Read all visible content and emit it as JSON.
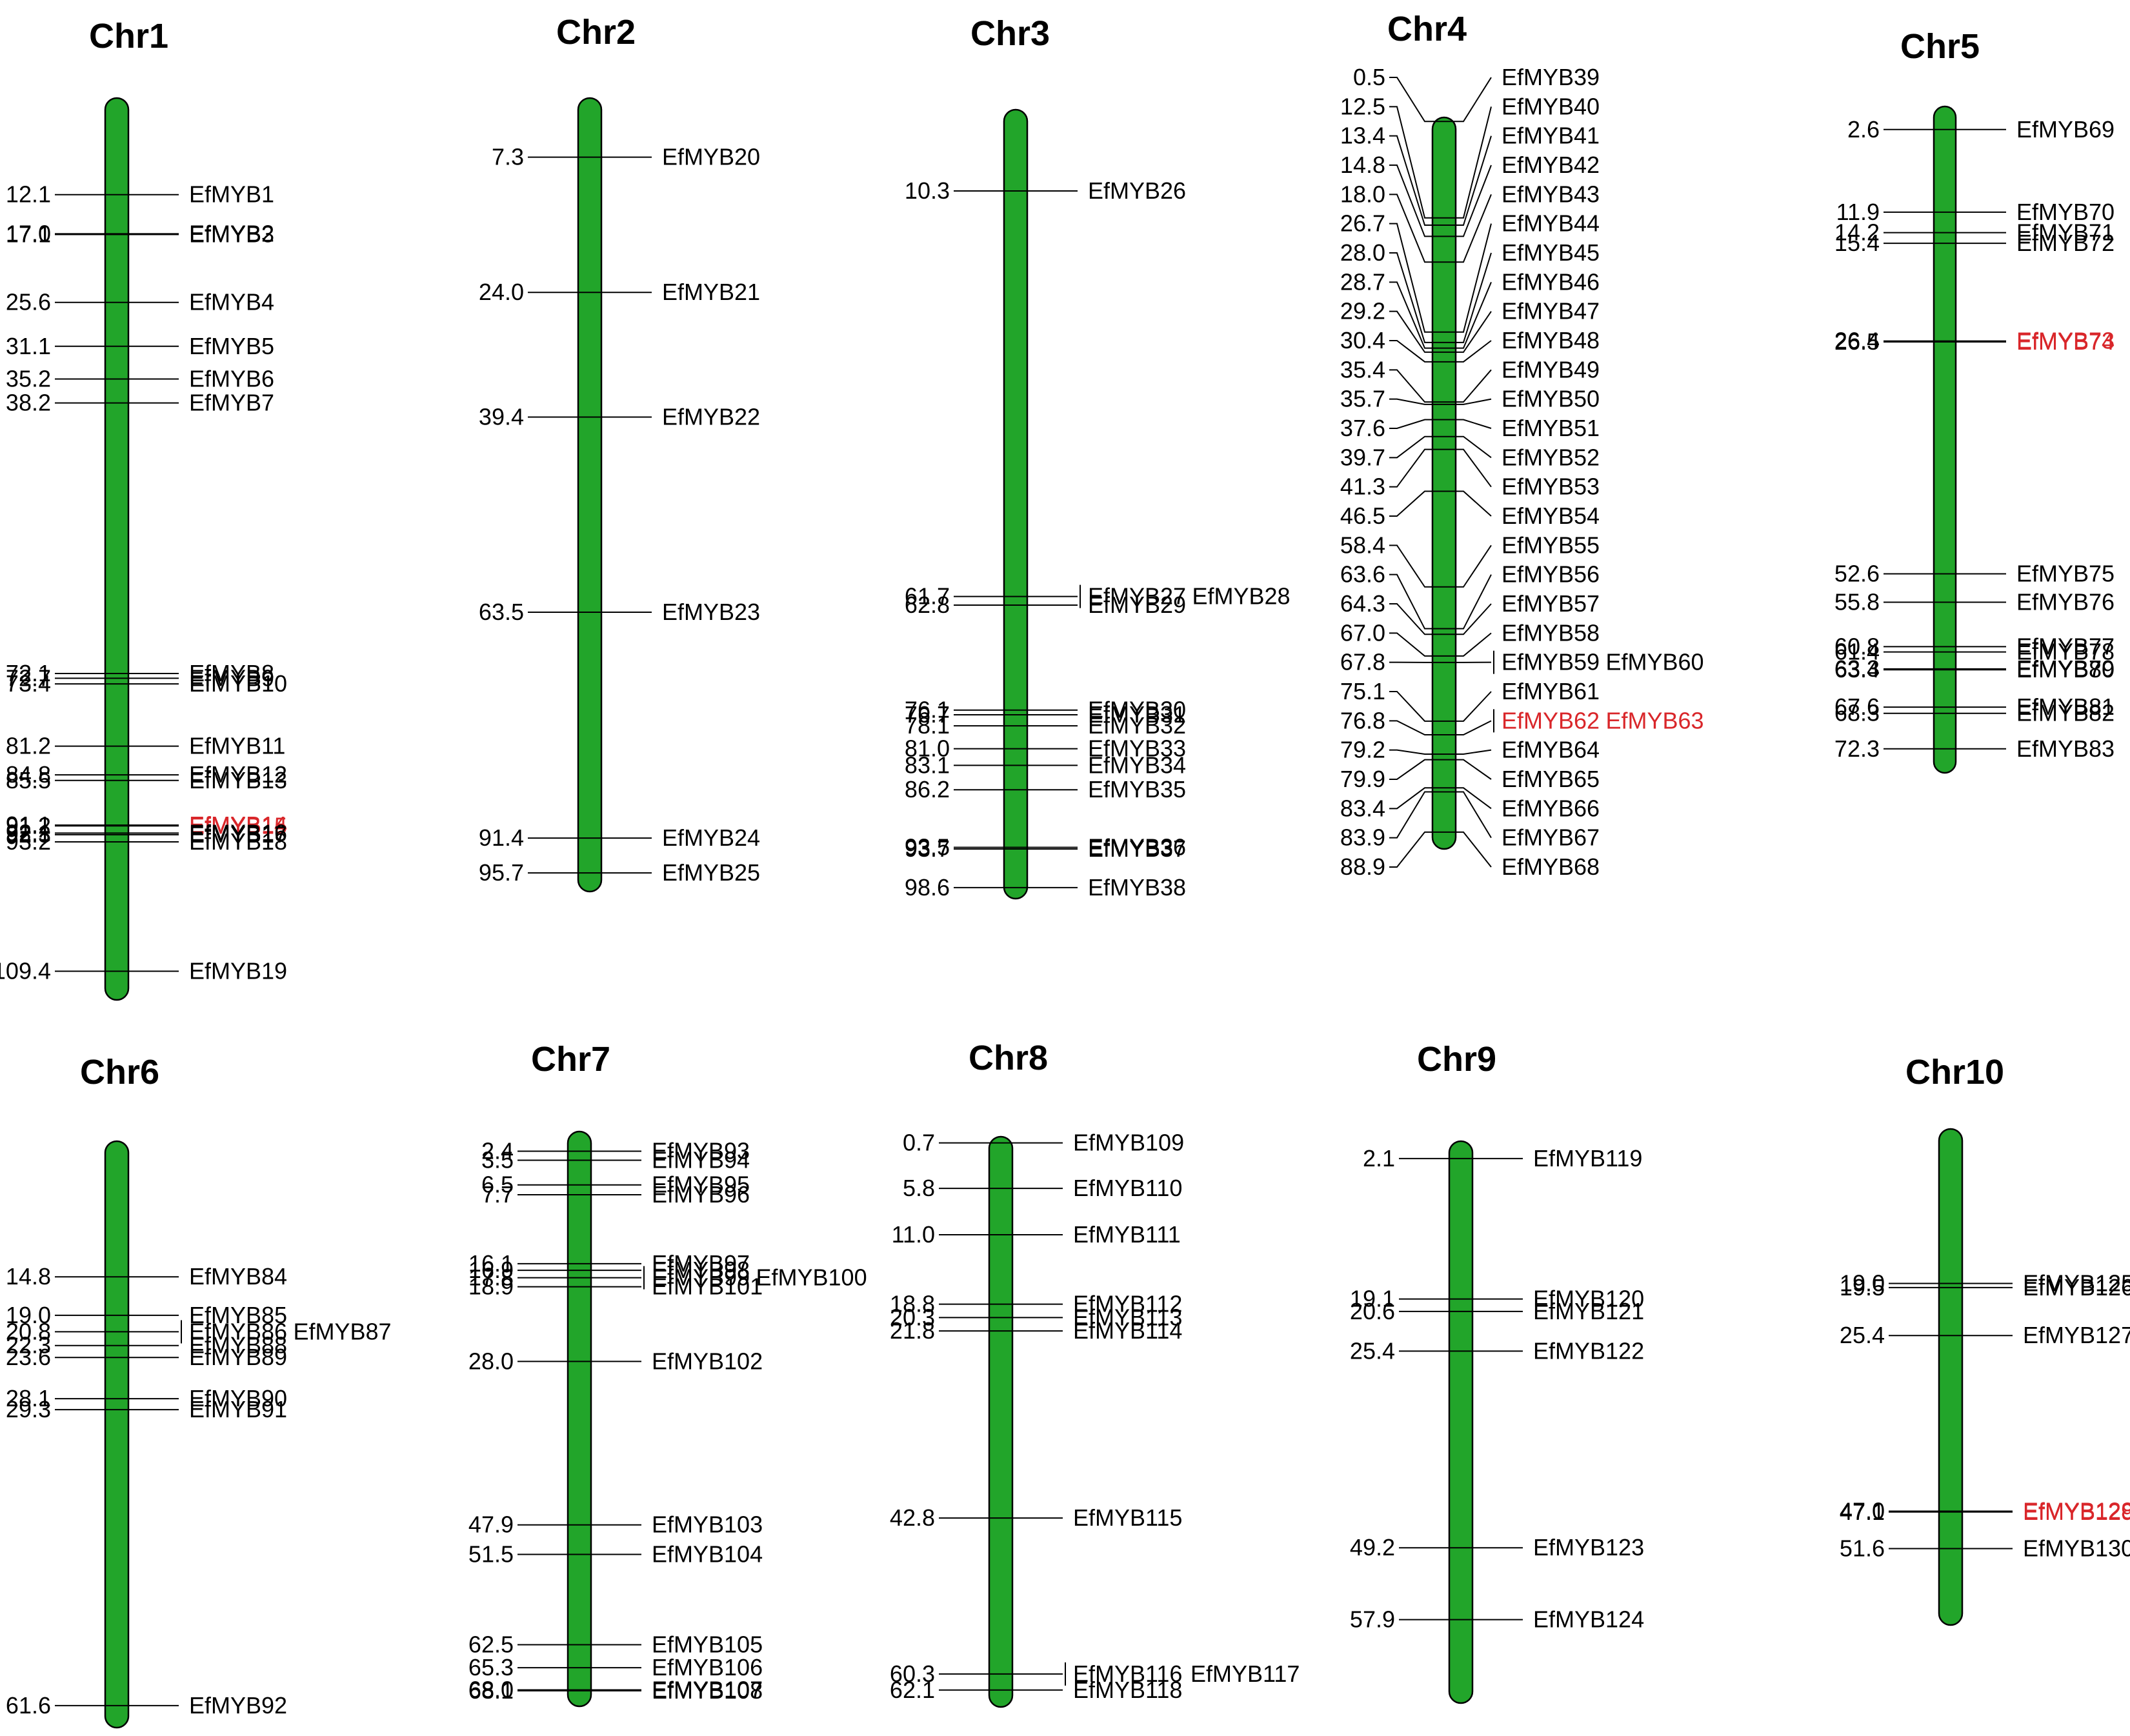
{
  "colors": {
    "chromosome_fill": "#22a52a",
    "highlight_gene": "#d9262a",
    "text": "#000000"
  },
  "chart_data": {
    "type": "chromosome-map",
    "units": "Mb",
    "chromosomes": [
      {
        "name": "Chr1",
        "length": 113,
        "genes": [
          {
            "pos": 12.1,
            "label": "12.1",
            "genes": [
              "EfMYB1"
            ]
          },
          {
            "pos": 17.0,
            "label": "17.0",
            "genes": [
              "EfMYB2"
            ]
          },
          {
            "pos": 17.1,
            "label": "17.1",
            "genes": [
              "EfMYB3"
            ]
          },
          {
            "pos": 25.6,
            "label": "25.6",
            "genes": [
              "EfMYB4"
            ]
          },
          {
            "pos": 31.1,
            "label": "31.1",
            "genes": [
              "EfMYB5"
            ]
          },
          {
            "pos": 35.2,
            "label": "35.2",
            "genes": [
              "EfMYB6"
            ]
          },
          {
            "pos": 38.2,
            "label": "38.2",
            "genes": [
              "EfMYB7"
            ]
          },
          {
            "pos": 72.1,
            "label": "72.1",
            "genes": [
              "EfMYB8"
            ]
          },
          {
            "pos": 72.7,
            "label": "72.7",
            "genes": [
              "EfMYB9"
            ]
          },
          {
            "pos": 73.4,
            "label": "73.4",
            "genes": [
              "EfMYB10"
            ]
          },
          {
            "pos": 81.2,
            "label": "81.2",
            "genes": [
              "EfMYB11"
            ]
          },
          {
            "pos": 84.8,
            "label": "84.8",
            "genes": [
              "EfMYB12"
            ]
          },
          {
            "pos": 85.5,
            "label": "85.5",
            "genes": [
              "EfMYB13"
            ]
          },
          {
            "pos": 91.1,
            "label": "91.1",
            "genes": [
              "EfMYB14"
            ],
            "highlight": true
          },
          {
            "pos": 91.2,
            "label": "91.2",
            "genes": [
              "EfMYB15"
            ],
            "highlight": true
          },
          {
            "pos": 92.1,
            "label": "92.1",
            "genes": [
              "EfMYB16"
            ]
          },
          {
            "pos": 92.3,
            "label": "92.3",
            "genes": [
              "EfMYB17"
            ]
          },
          {
            "pos": 93.2,
            "label": "93.2",
            "genes": [
              "EfMYB18"
            ]
          },
          {
            "pos": 109.4,
            "label": "109.4",
            "genes": [
              "EfMYB19"
            ]
          }
        ]
      },
      {
        "name": "Chr2",
        "length": 98,
        "genes": [
          {
            "pos": 7.3,
            "label": "7.3",
            "genes": [
              "EfMYB20"
            ]
          },
          {
            "pos": 24.0,
            "label": "24.0",
            "genes": [
              "EfMYB21"
            ]
          },
          {
            "pos": 39.4,
            "label": "39.4",
            "genes": [
              "EfMYB22"
            ]
          },
          {
            "pos": 63.5,
            "label": "63.5",
            "genes": [
              "EfMYB23"
            ]
          },
          {
            "pos": 91.4,
            "label": "91.4",
            "genes": [
              "EfMYB24"
            ]
          },
          {
            "pos": 95.7,
            "label": "95.7",
            "genes": [
              "EfMYB25"
            ]
          }
        ]
      },
      {
        "name": "Chr3",
        "length": 100,
        "genes": [
          {
            "pos": 10.3,
            "label": "10.3",
            "genes": [
              "EfMYB26"
            ]
          },
          {
            "pos": 61.7,
            "label": "61.7",
            "genes": [
              "EfMYB27",
              "EfMYB28"
            ]
          },
          {
            "pos": 62.8,
            "label": "62.8",
            "genes": [
              "EfMYB29"
            ]
          },
          {
            "pos": 76.1,
            "label": "76.1",
            "genes": [
              "EfMYB30"
            ]
          },
          {
            "pos": 76.7,
            "label": "76.7",
            "genes": [
              "EfMYB31"
            ]
          },
          {
            "pos": 78.1,
            "label": "78.1",
            "genes": [
              "EfMYB32"
            ]
          },
          {
            "pos": 81.0,
            "label": "81.0",
            "genes": [
              "EfMYB33"
            ]
          },
          {
            "pos": 83.1,
            "label": "83.1",
            "genes": [
              "EfMYB34"
            ]
          },
          {
            "pos": 86.2,
            "label": "86.2",
            "genes": [
              "EfMYB35"
            ]
          },
          {
            "pos": 93.5,
            "label": "93.5",
            "genes": [
              "EfMYB36"
            ]
          },
          {
            "pos": 93.7,
            "label": "93.7",
            "genes": [
              "EfMYB37"
            ]
          },
          {
            "pos": 98.6,
            "label": "98.6",
            "genes": [
              "EfMYB38"
            ]
          }
        ]
      },
      {
        "name": "Chr4",
        "length": 91,
        "genes": [
          {
            "pos": 0.5,
            "label": "0.5",
            "genes": [
              "EfMYB39"
            ]
          },
          {
            "pos": 12.5,
            "label": "12.5",
            "genes": [
              "EfMYB40"
            ]
          },
          {
            "pos": 13.4,
            "label": "13.4",
            "genes": [
              "EfMYB41"
            ]
          },
          {
            "pos": 14.8,
            "label": "14.8",
            "genes": [
              "EfMYB42"
            ]
          },
          {
            "pos": 18.0,
            "label": "18.0",
            "genes": [
              "EfMYB43"
            ]
          },
          {
            "pos": 26.7,
            "label": "26.7",
            "genes": [
              "EfMYB44"
            ]
          },
          {
            "pos": 28.0,
            "label": "28.0",
            "genes": [
              "EfMYB45"
            ]
          },
          {
            "pos": 28.7,
            "label": "28.7",
            "genes": [
              "EfMYB46"
            ]
          },
          {
            "pos": 29.2,
            "label": "29.2",
            "genes": [
              "EfMYB47"
            ]
          },
          {
            "pos": 30.4,
            "label": "30.4",
            "genes": [
              "EfMYB48"
            ]
          },
          {
            "pos": 35.4,
            "label": "35.4",
            "genes": [
              "EfMYB49"
            ]
          },
          {
            "pos": 35.7,
            "label": "35.7",
            "genes": [
              "EfMYB50"
            ]
          },
          {
            "pos": 37.6,
            "label": "37.6",
            "genes": [
              "EfMYB51"
            ]
          },
          {
            "pos": 39.7,
            "label": "39.7",
            "genes": [
              "EfMYB52"
            ]
          },
          {
            "pos": 41.3,
            "label": "41.3",
            "genes": [
              "EfMYB53"
            ]
          },
          {
            "pos": 46.5,
            "label": "46.5",
            "genes": [
              "EfMYB54"
            ]
          },
          {
            "pos": 58.4,
            "label": "58.4",
            "genes": [
              "EfMYB55"
            ]
          },
          {
            "pos": 63.6,
            "label": "63.6",
            "genes": [
              "EfMYB56"
            ]
          },
          {
            "pos": 64.3,
            "label": "64.3",
            "genes": [
              "EfMYB57"
            ]
          },
          {
            "pos": 67.0,
            "label": "67.0",
            "genes": [
              "EfMYB58"
            ]
          },
          {
            "pos": 67.8,
            "label": "67.8",
            "genes": [
              "EfMYB59",
              "EfMYB60"
            ]
          },
          {
            "pos": 75.1,
            "label": "75.1",
            "genes": [
              "EfMYB61"
            ]
          },
          {
            "pos": 76.8,
            "label": "76.8",
            "genes": [
              "EfMYB62",
              "EfMYB63"
            ],
            "highlight": true
          },
          {
            "pos": 79.2,
            "label": "79.2",
            "genes": [
              "EfMYB64"
            ]
          },
          {
            "pos": 79.9,
            "label": "79.9",
            "genes": [
              "EfMYB65"
            ]
          },
          {
            "pos": 83.4,
            "label": "83.4",
            "genes": [
              "EfMYB66"
            ]
          },
          {
            "pos": 83.9,
            "label": "83.9",
            "genes": [
              "EfMYB67"
            ]
          },
          {
            "pos": 88.9,
            "label": "88.9",
            "genes": [
              "EfMYB68"
            ]
          }
        ]
      },
      {
        "name": "Chr5",
        "length": 75,
        "genes": [
          {
            "pos": 2.6,
            "label": "2.6",
            "genes": [
              "EfMYB69"
            ]
          },
          {
            "pos": 11.9,
            "label": "11.9",
            "genes": [
              "EfMYB70"
            ]
          },
          {
            "pos": 14.2,
            "label": "14.2",
            "genes": [
              "EfMYB71"
            ]
          },
          {
            "pos": 15.4,
            "label": "15.4",
            "genes": [
              "EfMYB72"
            ]
          },
          {
            "pos": 26.4,
            "label": "26.4",
            "genes": [
              "EfMYB73"
            ],
            "highlight": true
          },
          {
            "pos": 26.5,
            "label": "26.5",
            "genes": [
              "EfMYB74"
            ],
            "highlight": true
          },
          {
            "pos": 52.6,
            "label": "52.6",
            "genes": [
              "EfMYB75"
            ]
          },
          {
            "pos": 55.8,
            "label": "55.8",
            "genes": [
              "EfMYB76"
            ]
          },
          {
            "pos": 60.8,
            "label": "60.8",
            "genes": [
              "EfMYB77"
            ]
          },
          {
            "pos": 61.4,
            "label": "61.4",
            "genes": [
              "EfMYB78"
            ]
          },
          {
            "pos": 63.3,
            "label": "63.3",
            "genes": [
              "EfMYB79"
            ]
          },
          {
            "pos": 63.4,
            "label": "63.4",
            "genes": [
              "EfMYB80"
            ]
          },
          {
            "pos": 67.6,
            "label": "67.6",
            "genes": [
              "EfMYB81"
            ]
          },
          {
            "pos": 68.3,
            "label": "68.3",
            "genes": [
              "EfMYB82"
            ]
          },
          {
            "pos": 72.3,
            "label": "72.3",
            "genes": [
              "EfMYB83"
            ]
          }
        ]
      },
      {
        "name": "Chr6",
        "length": 64,
        "genes": [
          {
            "pos": 14.8,
            "label": "14.8",
            "genes": [
              "EfMYB84"
            ]
          },
          {
            "pos": 19.0,
            "label": "19.0",
            "genes": [
              "EfMYB85"
            ]
          },
          {
            "pos": 20.8,
            "label": "20.8",
            "genes": [
              "EfMYB86",
              "EfMYB87"
            ]
          },
          {
            "pos": 22.3,
            "label": "22.3",
            "genes": [
              "EfMYB88"
            ]
          },
          {
            "pos": 23.6,
            "label": "23.6",
            "genes": [
              "EfMYB89"
            ]
          },
          {
            "pos": 28.1,
            "label": "28.1",
            "genes": [
              "EfMYB90"
            ]
          },
          {
            "pos": 29.3,
            "label": "29.3",
            "genes": [
              "EfMYB91"
            ]
          },
          {
            "pos": 61.6,
            "label": "61.6",
            "genes": [
              "EfMYB92"
            ]
          }
        ]
      },
      {
        "name": "Chr7",
        "length": 70,
        "genes": [
          {
            "pos": 2.4,
            "label": "2.4",
            "genes": [
              "EfMYB93"
            ]
          },
          {
            "pos": 3.5,
            "label": "3.5",
            "genes": [
              "EfMYB94"
            ]
          },
          {
            "pos": 6.5,
            "label": "6.5",
            "genes": [
              "EfMYB95"
            ]
          },
          {
            "pos": 7.7,
            "label": "7.7",
            "genes": [
              "EfMYB96"
            ]
          },
          {
            "pos": 16.1,
            "label": "16.1",
            "genes": [
              "EfMYB97"
            ]
          },
          {
            "pos": 16.9,
            "label": "16.9",
            "genes": [
              "EfMYB98"
            ]
          },
          {
            "pos": 17.8,
            "label": "17.8",
            "genes": [
              "EfMYB99",
              "EfMYB100"
            ]
          },
          {
            "pos": 18.9,
            "label": "18.9",
            "genes": [
              "EfMYB101"
            ]
          },
          {
            "pos": 28.0,
            "label": "28.0",
            "genes": [
              "EfMYB102"
            ]
          },
          {
            "pos": 47.9,
            "label": "47.9",
            "genes": [
              "EfMYB103"
            ]
          },
          {
            "pos": 51.5,
            "label": "51.5",
            "genes": [
              "EfMYB104"
            ]
          },
          {
            "pos": 62.5,
            "label": "62.5",
            "genes": [
              "EfMYB105"
            ]
          },
          {
            "pos": 65.3,
            "label": "65.3",
            "genes": [
              "EfMYB106"
            ]
          },
          {
            "pos": 68.0,
            "label": "68.0",
            "genes": [
              "EfMYB107"
            ]
          },
          {
            "pos": 68.1,
            "label": "68.1",
            "genes": [
              "EfMYB108"
            ]
          }
        ]
      },
      {
        "name": "Chr8",
        "length": 64,
        "genes": [
          {
            "pos": 0.7,
            "label": "0.7",
            "genes": [
              "EfMYB109"
            ]
          },
          {
            "pos": 5.8,
            "label": "5.8",
            "genes": [
              "EfMYB110"
            ]
          },
          {
            "pos": 11.0,
            "label": "11.0",
            "genes": [
              "EfMYB111"
            ]
          },
          {
            "pos": 18.8,
            "label": "18.8",
            "genes": [
              "EfMYB112"
            ]
          },
          {
            "pos": 20.3,
            "label": "20.3",
            "genes": [
              "EfMYB113"
            ]
          },
          {
            "pos": 21.8,
            "label": "21.8",
            "genes": [
              "EfMYB114"
            ]
          },
          {
            "pos": 42.8,
            "label": "42.8",
            "genes": [
              "EfMYB115"
            ]
          },
          {
            "pos": 60.3,
            "label": "60.3",
            "genes": [
              "EfMYB116",
              "EfMYB117"
            ]
          },
          {
            "pos": 62.1,
            "label": "62.1",
            "genes": [
              "EfMYB118"
            ]
          }
        ]
      },
      {
        "name": "Chr9",
        "length": 68,
        "genes": [
          {
            "pos": 2.1,
            "label": "2.1",
            "genes": [
              "EfMYB119"
            ]
          },
          {
            "pos": 19.1,
            "label": "19.1",
            "genes": [
              "EfMYB120"
            ]
          },
          {
            "pos": 20.6,
            "label": "20.6",
            "genes": [
              "EfMYB121"
            ]
          },
          {
            "pos": 25.4,
            "label": "25.4",
            "genes": [
              "EfMYB122"
            ]
          },
          {
            "pos": 49.2,
            "label": "49.2",
            "genes": [
              "EfMYB123"
            ]
          },
          {
            "pos": 57.9,
            "label": "57.9",
            "genes": [
              "EfMYB124"
            ]
          }
        ]
      },
      {
        "name": "Chr10",
        "length": 61,
        "genes": [
          {
            "pos": 19.0,
            "label": "19.0",
            "genes": [
              "EfMYB125"
            ]
          },
          {
            "pos": 19.5,
            "label": "19.5",
            "genes": [
              "EfMYB126"
            ]
          },
          {
            "pos": 25.4,
            "label": "25.4",
            "genes": [
              "EfMYB127"
            ]
          },
          {
            "pos": 47.0,
            "label": "47.0",
            "genes": [
              "EfMYB128"
            ],
            "highlight": true
          },
          {
            "pos": 47.1,
            "label": "47.1",
            "genes": [
              "EfMYB129"
            ],
            "highlight": true
          },
          {
            "pos": 51.6,
            "label": "51.6",
            "genes": [
              "EfMYB130"
            ]
          }
        ]
      }
    ]
  }
}
